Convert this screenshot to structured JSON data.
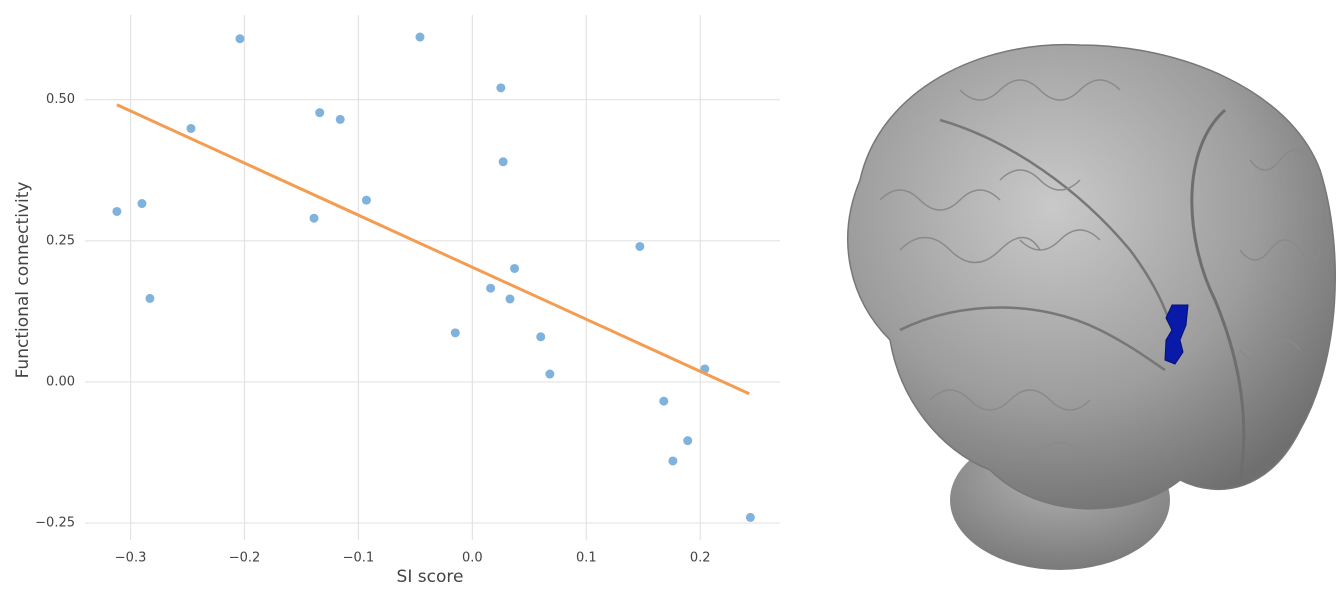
{
  "chart_data": {
    "type": "scatter",
    "x_label": "SI score",
    "y_label": "Functional connectivity",
    "xlim": [
      -0.34,
      0.27
    ],
    "ylim": [
      -0.28,
      0.65
    ],
    "xticks": [
      {
        "value": -0.3,
        "label": "−0.3"
      },
      {
        "value": -0.2,
        "label": "−0.2"
      },
      {
        "value": -0.1,
        "label": "−0.1"
      },
      {
        "value": 0,
        "label": "0.0"
      },
      0.1,
      0.2
    ],
    "yticks": [
      {
        "value": -0.25,
        "label": "−0.25"
      },
      {
        "value": 0,
        "label": "0.00"
      },
      {
        "value": 0.25,
        "label": "0.25"
      },
      {
        "value": 0.5,
        "label": "0.50"
      }
    ],
    "grid": true,
    "series": [
      {
        "color": "#7fb2dc",
        "x": [
          -0.312,
          -0.29,
          -0.283,
          -0.247,
          -0.204,
          -0.139,
          -0.134,
          -0.116,
          -0.093,
          -0.046,
          -0.015,
          0.016,
          0.025,
          0.027,
          0.033,
          0.037,
          0.06,
          0.068,
          0.147,
          0.168,
          0.176,
          0.189,
          0.204,
          0.244
        ],
        "y": [
          0.302,
          0.316,
          0.148,
          0.449,
          0.608,
          0.29,
          0.477,
          0.465,
          0.322,
          0.611,
          0.087,
          0.166,
          0.521,
          0.39,
          0.147,
          0.201,
          0.08,
          0.014,
          0.24,
          -0.034,
          -0.14,
          -0.104,
          0.023,
          -0.24
        ]
      }
    ],
    "trend_line": {
      "color": "#f39c52",
      "x": [
        -0.312,
        0.243
      ],
      "y": [
        0.491,
        -0.021
      ]
    }
  }
}
